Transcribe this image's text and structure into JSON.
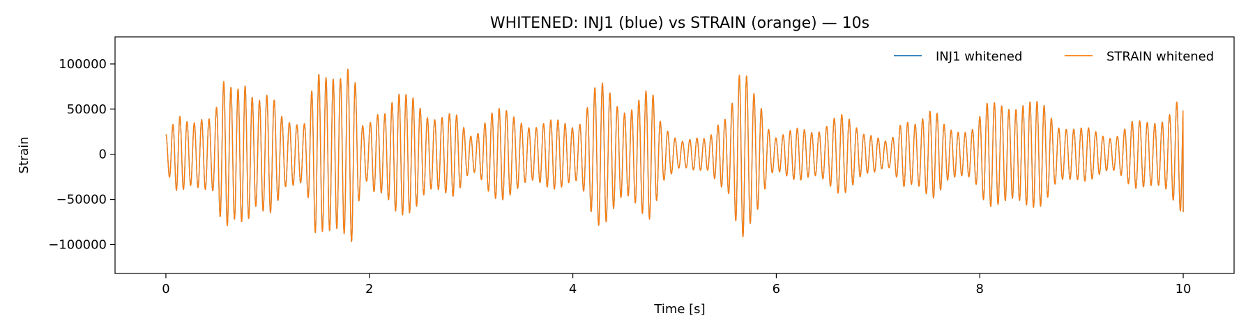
{
  "chart_data": {
    "type": "line",
    "title": "WHITENED: INJ1 (blue) vs STRAIN (orange) — 10s",
    "xlabel": "Time [s]",
    "ylabel": "Strain",
    "xlim": [
      -0.5,
      10.5
    ],
    "ylim": [
      -132000,
      130000
    ],
    "x_ticks": [
      0,
      2,
      4,
      6,
      8,
      10
    ],
    "x_tick_labels": [
      "0",
      "2",
      "4",
      "6",
      "8",
      "10"
    ],
    "y_ticks": [
      -100000,
      -50000,
      0,
      50000,
      100000
    ],
    "y_tick_labels": [
      "−100000",
      "−50000",
      "0",
      "50000",
      "100000"
    ],
    "grid": false,
    "legend_position": "top-right",
    "series": [
      {
        "name": "INJ1 whitened",
        "color": "#1f77b4",
        "x_range": [
          0,
          10
        ],
        "envelope_points": [
          [
            0,
            22000
          ],
          [
            0.15,
            52000
          ],
          [
            0.3,
            48000
          ],
          [
            0.45,
            40000
          ],
          [
            0.6,
            95000
          ],
          [
            0.75,
            105000
          ],
          [
            0.9,
            60000
          ],
          [
            1.05,
            70000
          ],
          [
            1.2,
            50000
          ],
          [
            1.35,
            35000
          ],
          [
            1.5,
            95000
          ],
          [
            1.65,
            118000
          ],
          [
            1.8,
            110000
          ],
          [
            1.95,
            30000
          ],
          [
            2.1,
            60000
          ],
          [
            2.25,
            75000
          ],
          [
            2.4,
            65000
          ],
          [
            2.6,
            55000
          ],
          [
            2.8,
            48000
          ],
          [
            3.0,
            25000
          ],
          [
            3.2,
            55000
          ],
          [
            3.45,
            45000
          ],
          [
            3.7,
            38000
          ],
          [
            4.0,
            40000
          ],
          [
            4.25,
            80000
          ],
          [
            4.5,
            65000
          ],
          [
            4.75,
            72000
          ],
          [
            4.9,
            35000
          ],
          [
            5.1,
            18000
          ],
          [
            5.3,
            18000
          ],
          [
            5.5,
            55000
          ],
          [
            5.65,
            95000
          ],
          [
            5.8,
            70000
          ],
          [
            6.0,
            25000
          ],
          [
            6.3,
            30000
          ],
          [
            6.6,
            45000
          ],
          [
            6.9,
            30000
          ],
          [
            7.1,
            15000
          ],
          [
            7.3,
            45000
          ],
          [
            7.5,
            55000
          ],
          [
            7.7,
            30000
          ],
          [
            7.9,
            35000
          ],
          [
            8.1,
            58000
          ],
          [
            8.35,
            70000
          ],
          [
            8.6,
            58000
          ],
          [
            8.8,
            40000
          ],
          [
            9.0,
            30000
          ],
          [
            9.3,
            25000
          ],
          [
            9.55,
            38000
          ],
          [
            9.8,
            50000
          ],
          [
            10.0,
            64000
          ]
        ],
        "carrier_cycles_per_second": 14
      },
      {
        "name": "STRAIN whitened",
        "color": "#ff7f0e",
        "x_range": [
          0,
          10
        ],
        "same_as": "INJ1 whitened"
      }
    ]
  }
}
